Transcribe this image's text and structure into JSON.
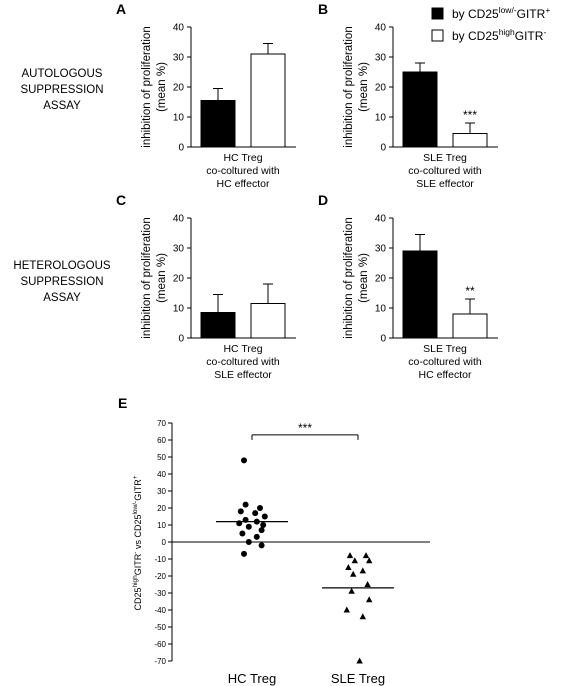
{
  "row_labels": {
    "autologous": [
      "AUTOLOGOUS",
      "SUPPRESSION",
      "ASSAY"
    ],
    "heterologous": [
      "HETEROLOGOUS",
      "SUPPRESSION",
      "ASSAY"
    ]
  },
  "legend": {
    "black": {
      "prefix": "by CD25",
      "sup1": "low/-",
      "mid": "GITR",
      "sup2": "+",
      "color": "#000000"
    },
    "white": {
      "prefix": "by CD25",
      "sup1": "high",
      "mid": "GITR",
      "sup2": "-",
      "color": "#ffffff"
    }
  },
  "ylabel_line1": "inhibition of proliferation",
  "ylabel_line2": "(mean %)",
  "panelE_ylabel": {
    "a": "CD25",
    "a_sup": "high",
    "b": "GITR",
    "b_sup": "-",
    "c": " vs CD25",
    "c_sup": "low/-",
    "d": "GITR",
    "d_sup": "+"
  },
  "chart_data": [
    {
      "panel": "A",
      "type": "bar",
      "ylim": [
        0,
        40
      ],
      "yticks": [
        0,
        10,
        20,
        30,
        40
      ],
      "xlabel": [
        "HC Treg",
        "co-coltured with",
        "HC effector"
      ],
      "bars": [
        {
          "series": "by CD25low/-GITR+",
          "value": 15.5,
          "error": 4,
          "color": "#000000"
        },
        {
          "series": "by CD25highGITR-",
          "value": 31,
          "error": 3.5,
          "color": "#ffffff"
        }
      ],
      "significance": ""
    },
    {
      "panel": "B",
      "type": "bar",
      "ylim": [
        0,
        40
      ],
      "yticks": [
        0,
        10,
        20,
        30,
        40
      ],
      "xlabel": [
        "SLE Treg",
        "co-coltured with",
        "SLE effector"
      ],
      "bars": [
        {
          "series": "by CD25low/-GITR+",
          "value": 25,
          "error": 3,
          "color": "#000000"
        },
        {
          "series": "by CD25highGITR-",
          "value": 4.5,
          "error": 3.5,
          "color": "#ffffff"
        }
      ],
      "significance": "***"
    },
    {
      "panel": "C",
      "type": "bar",
      "ylim": [
        0,
        40
      ],
      "yticks": [
        0,
        10,
        20,
        30,
        40
      ],
      "xlabel": [
        "HC Treg",
        "co-coltured with",
        "SLE effector"
      ],
      "bars": [
        {
          "series": "by CD25low/-GITR+",
          "value": 8.5,
          "error": 6,
          "color": "#000000"
        },
        {
          "series": "by CD25highGITR-",
          "value": 11.5,
          "error": 6.5,
          "color": "#ffffff"
        }
      ],
      "significance": ""
    },
    {
      "panel": "D",
      "type": "bar",
      "ylim": [
        0,
        40
      ],
      "yticks": [
        0,
        10,
        20,
        30,
        40
      ],
      "xlabel": [
        "SLE Treg",
        "co-coltured with",
        "HC effector"
      ],
      "bars": [
        {
          "series": "by CD25low/-GITR+",
          "value": 29,
          "error": 5.5,
          "color": "#000000"
        },
        {
          "series": "by CD25highGITR-",
          "value": 8,
          "error": 5,
          "color": "#ffffff"
        }
      ],
      "significance": "**"
    },
    {
      "panel": "E",
      "type": "scatter",
      "ylim": [
        -70,
        70
      ],
      "yticks": [
        -70,
        -60,
        -50,
        -40,
        -30,
        -20,
        -10,
        0,
        10,
        20,
        30,
        40,
        50,
        60,
        70
      ],
      "categories": [
        "HC Treg",
        "SLE Treg"
      ],
      "significance": "***",
      "series": [
        {
          "name": "HC Treg",
          "marker": "circle",
          "mean": 12,
          "points": [
            [
              -0.5,
              48
            ],
            [
              -0.4,
              22
            ],
            [
              0.5,
              20
            ],
            [
              -0.7,
              18
            ],
            [
              0.2,
              17
            ],
            [
              0.8,
              15
            ],
            [
              -0.4,
              13
            ],
            [
              0.3,
              12
            ],
            [
              -0.8,
              11
            ],
            [
              0.7,
              10
            ],
            [
              -0.2,
              9
            ],
            [
              0.6,
              7
            ],
            [
              -0.6,
              5
            ],
            [
              0.3,
              3
            ],
            [
              -0.2,
              0
            ],
            [
              0.6,
              -2
            ],
            [
              -0.5,
              -7
            ]
          ]
        },
        {
          "name": "SLE Treg",
          "marker": "triangle",
          "mean": -27,
          "points": [
            [
              -0.5,
              -8
            ],
            [
              0.5,
              -8
            ],
            [
              -0.2,
              -11
            ],
            [
              0.7,
              -11
            ],
            [
              -0.6,
              -15
            ],
            [
              0.3,
              -17
            ],
            [
              -0.3,
              -19
            ],
            [
              0.6,
              -25
            ],
            [
              -0.4,
              -29
            ],
            [
              0.7,
              -34
            ],
            [
              -0.7,
              -40
            ],
            [
              0.3,
              -44
            ],
            [
              0.1,
              -70
            ]
          ]
        }
      ]
    }
  ]
}
